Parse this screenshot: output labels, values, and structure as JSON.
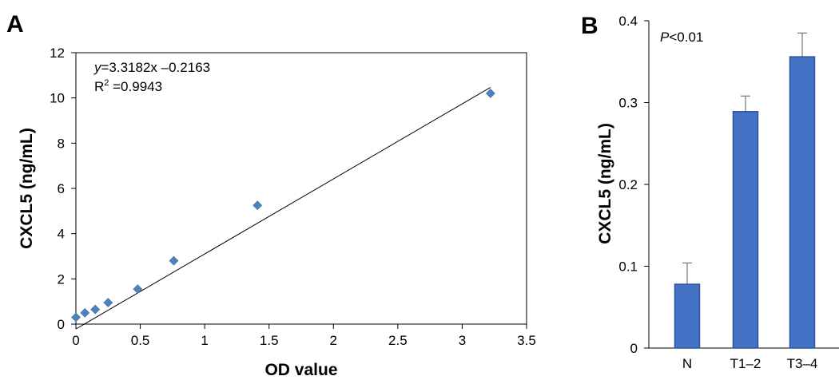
{
  "chart_data": [
    {
      "panel": "A",
      "type": "scatter",
      "xlabel": "OD value",
      "ylabel": "CXCL5 (ng/mL)",
      "xlim": [
        0,
        3.5
      ],
      "ylim": [
        0,
        12
      ],
      "xticks": [
        "0",
        "0.5",
        "1",
        "1.5",
        "2",
        "2.5",
        "3",
        "3.5"
      ],
      "yticks": [
        "0",
        "2",
        "4",
        "6",
        "8",
        "10",
        "12"
      ],
      "points": [
        {
          "x": 0.0,
          "y": 0.3
        },
        {
          "x": 0.07,
          "y": 0.5
        },
        {
          "x": 0.15,
          "y": 0.65
        },
        {
          "x": 0.25,
          "y": 0.95
        },
        {
          "x": 0.48,
          "y": 1.55
        },
        {
          "x": 0.76,
          "y": 2.8
        },
        {
          "x": 1.41,
          "y": 5.25
        },
        {
          "x": 3.22,
          "y": 10.2
        }
      ],
      "fit": {
        "slope": 3.3182,
        "intercept": -0.2163,
        "equation_var": "y",
        "equation_rest": "=3.3182x –0.2163",
        "r2_base": "R",
        "r2_sup": "2",
        "r2_rest": " =0.9943"
      },
      "marker_color": "#4f81bd",
      "grid": false
    },
    {
      "panel": "B",
      "type": "bar",
      "categories": [
        "N",
        "T1–2",
        "T3–4"
      ],
      "values": [
        0.078,
        0.289,
        0.356
      ],
      "errors": [
        0.026,
        0.019,
        0.029
      ],
      "ylabel": "CXCL5 (ng/mL)",
      "xlabel": "",
      "ylim": [
        0,
        0.4
      ],
      "yticks": [
        "0",
        "0.1",
        "0.2",
        "0.3",
        "0.4"
      ],
      "annotation_italic": "P",
      "annotation_rest": "<0.01",
      "bar_color": "#4472c4",
      "bar_edge_color": "#2f5597",
      "error_color": "#7f7f7f",
      "grid": false
    }
  ]
}
